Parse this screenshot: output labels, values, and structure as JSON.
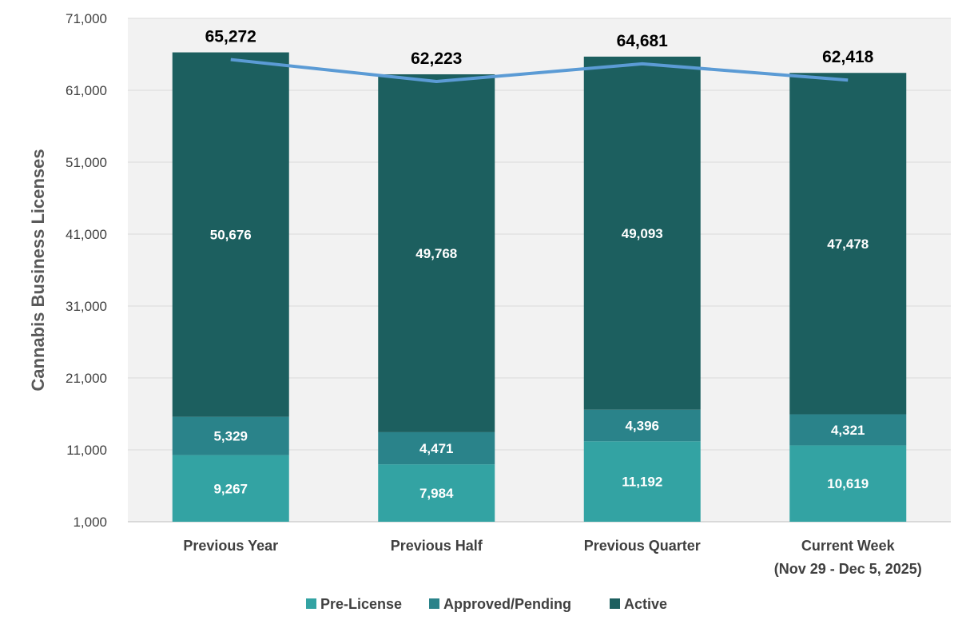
{
  "chart_data": {
    "type": "bar",
    "stacked": true,
    "ylabel": "Cannabis  Business Licenses",
    "ylim": [
      1000,
      71000
    ],
    "yticks": [
      "1,000",
      "11,000",
      "21,000",
      "31,000",
      "41,000",
      "51,000",
      "61,000",
      "71,000"
    ],
    "ytick_values": [
      1000,
      11000,
      21000,
      31000,
      41000,
      51000,
      61000,
      71000
    ],
    "grid": true,
    "legend_position": "bottom",
    "categories": [
      [
        "Previous Year"
      ],
      [
        "Previous Half"
      ],
      [
        "Previous Quarter"
      ],
      [
        "Current Week",
        "(Nov 29 - Dec 5, 2025)"
      ]
    ],
    "series": [
      {
        "name": "Pre-License",
        "color": "#33a3a3",
        "values": [
          9267,
          7984,
          11192,
          10619
        ],
        "labels": [
          "9,267",
          "7,984",
          "11,192",
          "10,619"
        ]
      },
      {
        "name": "Approved/Pending",
        "color": "#2a838a",
        "values": [
          5329,
          4471,
          4396,
          4321
        ],
        "labels": [
          "5,329",
          "4,471",
          "4,396",
          "4,321"
        ]
      },
      {
        "name": "Active",
        "color": "#1c5f5f",
        "values": [
          50676,
          49768,
          49093,
          47478
        ],
        "labels": [
          "50,676",
          "49,768",
          "49,093",
          "47,478"
        ]
      }
    ],
    "totals": {
      "type": "line",
      "color": "#5b9bd5",
      "values": [
        65272,
        62223,
        64681,
        62418
      ],
      "labels": [
        "65,272",
        "62,223",
        "64,681",
        "62,418"
      ]
    }
  }
}
